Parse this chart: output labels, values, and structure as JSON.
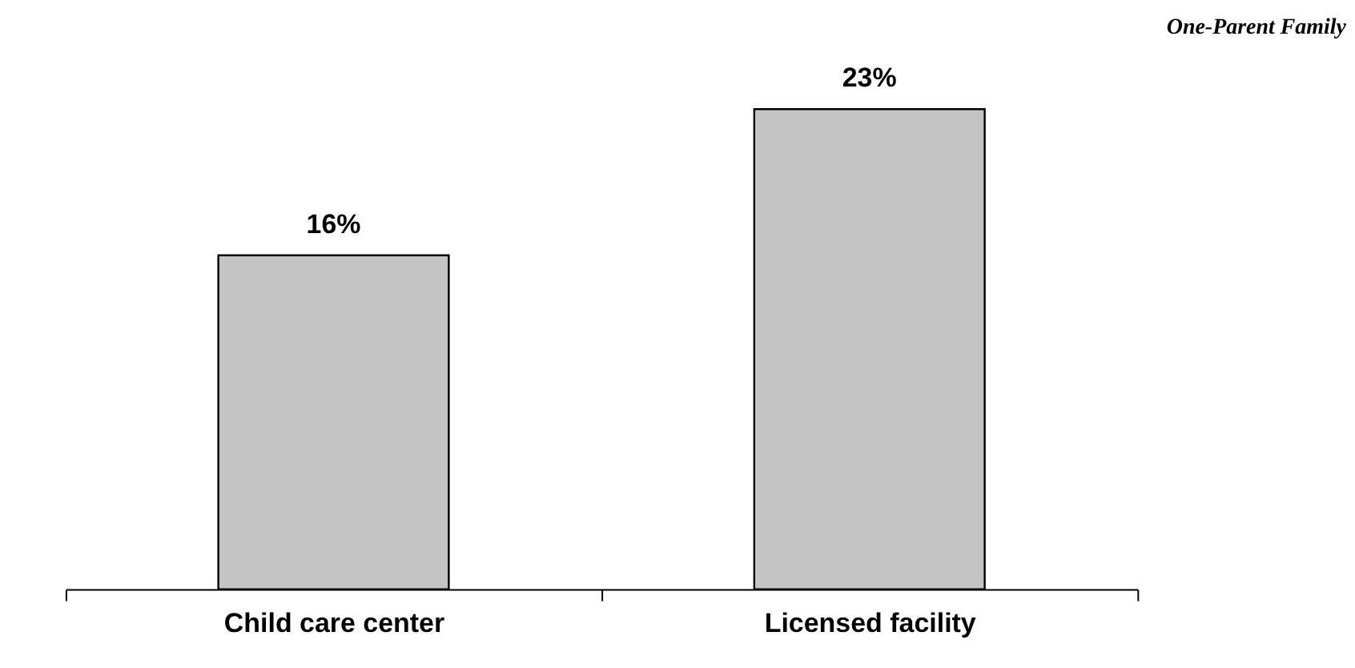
{
  "chart_data": {
    "type": "bar",
    "title": "One-Parent Family",
    "categories": [
      "Child care center",
      "Licensed facility"
    ],
    "values": [
      16,
      23
    ],
    "value_labels": [
      "16%",
      "23%"
    ],
    "color": "#c4c4c4"
  }
}
